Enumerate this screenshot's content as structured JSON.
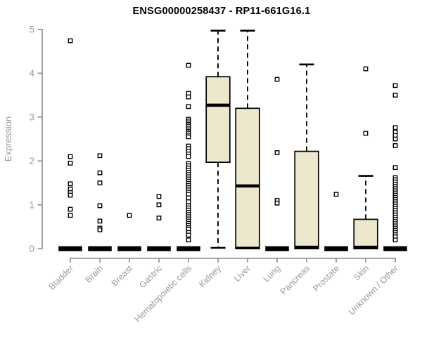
{
  "chart_data": {
    "type": "boxplot",
    "title": "ENSG00000258437 - RP11-661G16.1",
    "ylabel": "Expression",
    "xlabel": "",
    "ylim": [
      0,
      5
    ],
    "yticks": [
      0,
      1,
      2,
      3,
      4,
      5
    ],
    "grid": false,
    "legend": false,
    "categories": [
      "Bladder",
      "Brain",
      "Breast",
      "Gastric",
      "Hematopoietic cells",
      "Kidney",
      "Liver",
      "Lung",
      "Pancreas",
      "Prostate",
      "Skin",
      "Unknown / Other"
    ],
    "boxes": [
      {
        "category": "Bladder",
        "q1": 0,
        "median": 0,
        "q3": 0,
        "lo": 0,
        "hi": 0,
        "outliers": [
          4.74,
          2.1,
          1.95,
          1.48,
          1.36,
          1.28,
          1.22,
          0.9,
          0.76
        ]
      },
      {
        "category": "Brain",
        "q1": 0,
        "median": 0,
        "q3": 0,
        "lo": 0,
        "hi": 0,
        "outliers": [
          2.12,
          1.73,
          1.5,
          0.98,
          0.63,
          0.47,
          0.43
        ]
      },
      {
        "category": "Breast",
        "q1": 0,
        "median": 0,
        "q3": 0,
        "lo": 0,
        "hi": 0,
        "outliers": [
          0.76
        ]
      },
      {
        "category": "Gastric",
        "q1": 0,
        "median": 0,
        "q3": 0,
        "lo": 0,
        "hi": 0,
        "outliers": [
          1.19,
          1.0,
          0.7
        ]
      },
      {
        "category": "Hematopoietic cells",
        "q1": 0,
        "median": 0,
        "q3": 0,
        "lo": 0,
        "hi": 0,
        "outliers": [
          4.18,
          3.54,
          3.46,
          3.24,
          2.95,
          2.91,
          2.87,
          2.83,
          2.79,
          2.75,
          2.71,
          2.67,
          2.63,
          2.59,
          2.55,
          2.34,
          2.28,
          2.22,
          2.16,
          2.1,
          1.94,
          1.89,
          1.84,
          1.79,
          1.74,
          1.69,
          1.64,
          1.59,
          1.54,
          1.49,
          1.44,
          1.39,
          1.34,
          1.29,
          1.24,
          1.16,
          1.07,
          0.98,
          0.93,
          0.88,
          0.83,
          0.78,
          0.73,
          0.68,
          0.63,
          0.58,
          0.53,
          0.48,
          0.44,
          0.37,
          0.31,
          0.2
        ]
      },
      {
        "category": "Kidney",
        "q1": 1.97,
        "median": 3.27,
        "q3": 3.92,
        "lo": 0.02,
        "hi": 4.97,
        "outliers": []
      },
      {
        "category": "Liver",
        "q1": 0,
        "median": 1.43,
        "q3": 3.2,
        "lo": 0,
        "hi": 4.97,
        "outliers": []
      },
      {
        "category": "Lung",
        "q1": 0,
        "median": 0,
        "q3": 0,
        "lo": 0,
        "hi": 0,
        "outliers": [
          3.86,
          2.19,
          1.1,
          1.04
        ]
      },
      {
        "category": "Pancreas",
        "q1": 0,
        "median": 0.02,
        "q3": 2.22,
        "lo": 0,
        "hi": 4.2,
        "outliers": []
      },
      {
        "category": "Prostate",
        "q1": 0,
        "median": 0,
        "q3": 0,
        "lo": 0,
        "hi": 0,
        "outliers": [
          1.24
        ]
      },
      {
        "category": "Skin",
        "q1": 0,
        "median": 0.02,
        "q3": 0.67,
        "lo": 0,
        "hi": 1.66,
        "outliers": [
          4.1,
          2.63
        ]
      },
      {
        "category": "Unknown / Other",
        "q1": 0,
        "median": 0,
        "q3": 0,
        "lo": 0,
        "hi": 0,
        "outliers": [
          3.72,
          3.5,
          2.76,
          2.66,
          2.58,
          2.5,
          2.35,
          1.85,
          1.62,
          1.57,
          1.52,
          1.47,
          1.42,
          1.37,
          1.32,
          1.27,
          1.22,
          1.17,
          1.12,
          1.07,
          1.02,
          0.97,
          0.92,
          0.87,
          0.82,
          0.77,
          0.72,
          0.67,
          0.62,
          0.57,
          0.52,
          0.47,
          0.42,
          0.37,
          0.32,
          0.27,
          0.2
        ]
      }
    ],
    "colors": {
      "box_fill": "#ece7cd",
      "box_stroke": "#000000",
      "median": "#000000",
      "whisker": "#000000",
      "outlier_stroke": "#000000",
      "outlier_fill": "#ffffff",
      "axis": "#8c8c8c",
      "tick_label": "#999999",
      "axis_label": "#999999",
      "title": "#000000",
      "background": "#ffffff"
    }
  }
}
